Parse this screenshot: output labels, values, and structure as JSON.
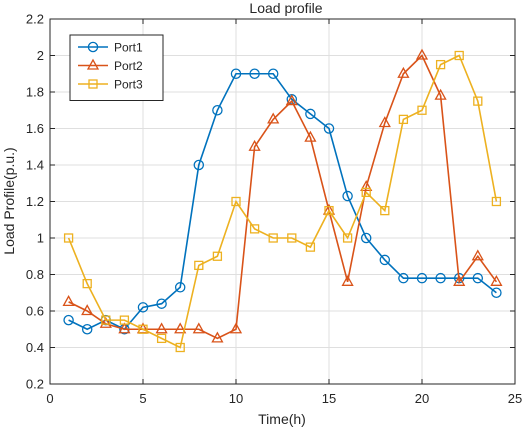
{
  "chart_data": {
    "type": "line",
    "title": "Load profile",
    "xlabel": "Time(h)",
    "ylabel": "Load Profile(p.u.)",
    "xlim": [
      0,
      25
    ],
    "ylim": [
      0.2,
      2.2
    ],
    "xticks": [
      0,
      5,
      10,
      15,
      20,
      25
    ],
    "yticks": [
      0.2,
      0.4,
      0.6,
      0.8,
      1,
      1.2,
      1.4,
      1.6,
      1.8,
      2,
      2.2
    ],
    "grid": true,
    "legend_position": "top-left",
    "x": [
      1,
      2,
      3,
      4,
      5,
      6,
      7,
      8,
      9,
      10,
      11,
      12,
      13,
      14,
      15,
      16,
      17,
      18,
      19,
      20,
      21,
      22,
      23,
      24
    ],
    "series": [
      {
        "name": "Port1",
        "color": "#0072BD",
        "marker": "circle",
        "values": [
          0.55,
          0.5,
          0.55,
          0.5,
          0.62,
          0.64,
          0.73,
          1.4,
          1.7,
          1.9,
          1.9,
          1.9,
          1.76,
          1.68,
          1.6,
          1.23,
          1.0,
          0.88,
          0.78,
          0.78,
          0.78,
          0.78,
          0.78,
          0.7
        ]
      },
      {
        "name": "Port2",
        "color": "#D95319",
        "marker": "triangle",
        "values": [
          0.65,
          0.6,
          0.53,
          0.5,
          0.5,
          0.5,
          0.5,
          0.5,
          0.45,
          0.5,
          1.5,
          1.65,
          1.75,
          1.55,
          1.15,
          0.76,
          1.28,
          1.63,
          1.9,
          2.0,
          1.78,
          0.76,
          0.9,
          0.76
        ]
      },
      {
        "name": "Port3",
        "color": "#EDB120",
        "marker": "square",
        "values": [
          1.0,
          0.75,
          0.55,
          0.55,
          0.5,
          0.45,
          0.4,
          0.85,
          0.9,
          1.2,
          1.05,
          1.0,
          1.0,
          0.95,
          1.15,
          1.0,
          1.25,
          1.15,
          1.65,
          1.7,
          1.95,
          2.0,
          1.75,
          1.2
        ]
      }
    ]
  }
}
